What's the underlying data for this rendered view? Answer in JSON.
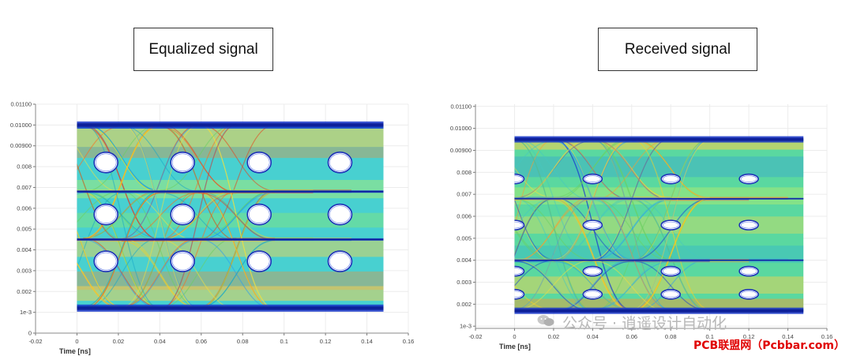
{
  "panels": [
    {
      "title": "Equalized signal"
    },
    {
      "title": "Received signal"
    }
  ],
  "chart_data": [
    {
      "type": "eye-diagram",
      "title": "Equalized signal",
      "xlabel": "Time [ns]",
      "ylabel": "",
      "xlim": [
        -0.02,
        0.16
      ],
      "ylim": [
        0,
        0.011
      ],
      "x_ticks": [
        "-0.02",
        "0",
        "0.02",
        "0.04",
        "0.06",
        "0.08",
        "0.1",
        "0.12",
        "0.14",
        "0.16"
      ],
      "y_ticks": [
        "0",
        "1e-3",
        "0.002",
        "0.003",
        "0.004",
        "0.005",
        "0.006",
        "0.007",
        "0.008",
        "0.00900",
        "0.01000",
        "0.01100"
      ],
      "signal_x_range": [
        0,
        0.148
      ],
      "levels": [
        0.0012,
        0.0045,
        0.0068,
        0.01
      ],
      "eye_centers_x": [
        0.014,
        0.051,
        0.088,
        0.127
      ],
      "eye_centers_y": [
        0.00345,
        0.0057,
        0.0082
      ]
    },
    {
      "type": "eye-diagram",
      "title": "Received signal",
      "xlabel": "Time [ns]",
      "ylabel": "",
      "xlim": [
        -0.02,
        0.16
      ],
      "ylim": [
        0.0009,
        0.0111
      ],
      "x_ticks": [
        "-0.02",
        "0",
        "0.02",
        "0.04",
        "0.06",
        "0.08",
        "0.1",
        "0.12",
        "0.14",
        "0.16"
      ],
      "y_ticks": [
        "1e-3",
        "0.002",
        "0.003",
        "0.004",
        "0.005",
        "0.006",
        "0.007",
        "0.008",
        "0.00900",
        "0.01000",
        "0.01100"
      ],
      "signal_x_range": [
        0,
        0.148
      ],
      "levels": [
        0.0017,
        0.004,
        0.0068,
        0.0095
      ],
      "eye_centers_x": [
        0.0,
        0.04,
        0.08,
        0.12
      ],
      "eye_centers_y": [
        0.00245,
        0.0035,
        0.0056,
        0.0077
      ]
    }
  ],
  "watermark": {
    "text": "公众号 · 逍遥设计自动化",
    "site": "PCB联盟网（Pcbbar.com）"
  }
}
